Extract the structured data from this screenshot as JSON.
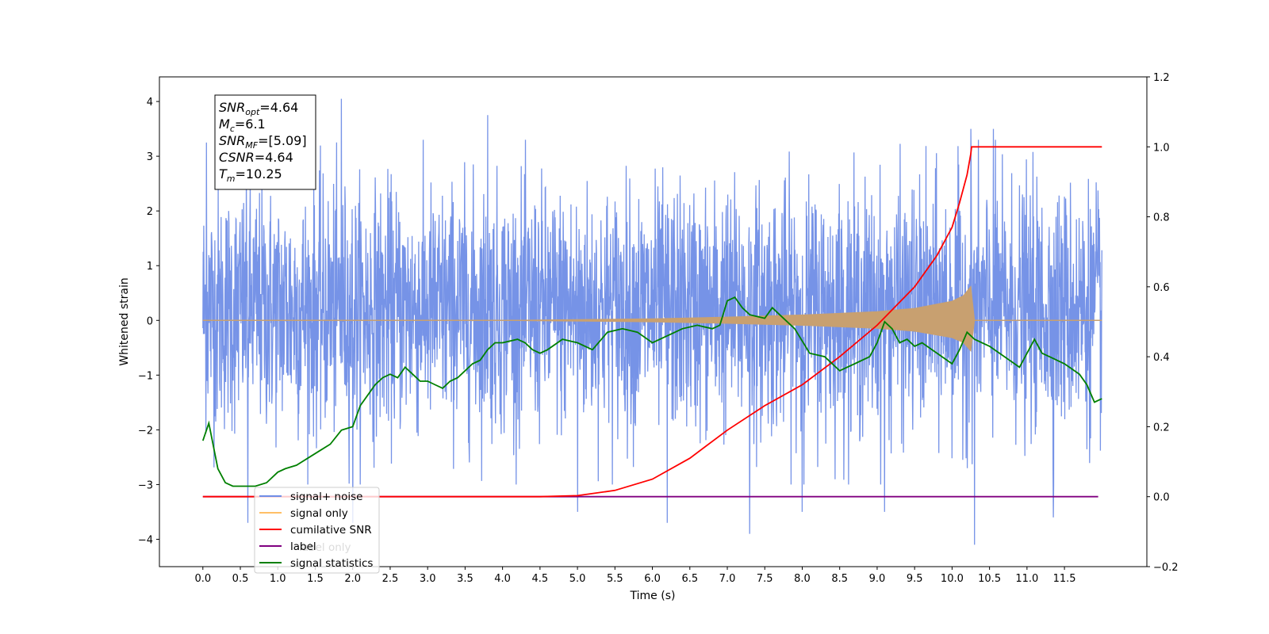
{
  "chart_data": {
    "type": "line",
    "title": "",
    "xlabel": "Time (s)",
    "ylabel": "Whitened strain",
    "y2label": "",
    "xlim": [
      -0.58,
      12.6
    ],
    "ylim": [
      -4.5,
      4.45
    ],
    "y2lim": [
      -0.2,
      1.2
    ],
    "grid": false,
    "x_ticks": [
      "0.0",
      "0.5",
      "1.0",
      "1.5",
      "2.0",
      "2.5",
      "3.0",
      "3.5",
      "4.0",
      "4.5",
      "5.0",
      "5.5",
      "6.0",
      "6.5",
      "7.0",
      "7.5",
      "8.0",
      "8.5",
      "9.0",
      "9.5",
      "10.0",
      "10.5",
      "11.0",
      "11.5"
    ],
    "y_ticks": [
      "4",
      "3",
      "2",
      "1",
      "0",
      "−1",
      "−2",
      "−3",
      "−4"
    ],
    "y2_ticks": [
      "1.2",
      "1.0",
      "0.8",
      "0.6",
      "0.4",
      "0.2",
      "0.0",
      "−0.2"
    ],
    "annotation": {
      "lines": [
        {
          "var": "SNR",
          "sub": "opt",
          "value": "=4.64"
        },
        {
          "var": "M",
          "sub": "c",
          "value": "=6.1"
        },
        {
          "var": "SNR",
          "sub": "MF",
          "value": "=[5.09]"
        },
        {
          "var": "CSNR",
          "sub": "",
          "value": "=4.64"
        },
        {
          "var": "T",
          "sub": "m",
          "value": "=10.25"
        }
      ]
    },
    "legend": {
      "placement": "lower-left",
      "entries": [
        {
          "label": "signal+ noise",
          "color": "#6f8de6"
        },
        {
          "label": "signal only",
          "color": "#ffbf66"
        },
        {
          "label": "cumilative SNR",
          "color": "#ff0000"
        },
        {
          "label": "label",
          "color": "#800080"
        },
        {
          "label": "signal statistics",
          "color": "#008000"
        }
      ],
      "hidden_text": "label only"
    },
    "series": [
      {
        "name": "signal+ noise",
        "axis": "left",
        "color": "#6f8de6",
        "x_range": [
          0,
          12.0
        ],
        "envelope_typical": [
          -2.0,
          2.5
        ],
        "spikes_x": [
          0.05,
          0.6,
          1.85,
          2.0,
          3.8,
          5.0,
          6.2,
          7.3,
          8.0,
          9.1,
          10.25,
          10.3,
          10.55,
          11.35
        ],
        "spikes_y": [
          3.25,
          -3.7,
          4.05,
          -3.7,
          3.75,
          -3.5,
          -3.7,
          -3.9,
          -3.5,
          -3.5,
          3.5,
          -4.1,
          3.5,
          -3.6
        ]
      },
      {
        "name": "signal only",
        "axis": "left",
        "color": "#c8a070",
        "x_range": [
          0,
          12.0
        ],
        "chirp_envelope_x": [
          0,
          4.0,
          6.0,
          7.0,
          8.0,
          9.0,
          9.5,
          10.0,
          10.15,
          10.25,
          10.3,
          12.0
        ],
        "chirp_envelope_y": [
          0.0,
          0.0,
          0.03,
          0.06,
          0.1,
          0.16,
          0.22,
          0.35,
          0.45,
          0.62,
          0.0,
          0.0
        ]
      },
      {
        "name": "cumilative SNR",
        "axis": "right",
        "color": "#ff0000",
        "x": [
          0,
          4.5,
          5.0,
          5.5,
          6.0,
          6.5,
          7.0,
          7.5,
          8.0,
          8.5,
          9.0,
          9.5,
          9.8,
          10.0,
          10.1,
          10.2,
          10.25,
          10.26,
          12.0
        ],
        "values": [
          0.0,
          0.0,
          0.003,
          0.018,
          0.05,
          0.11,
          0.19,
          0.26,
          0.32,
          0.4,
          0.49,
          0.6,
          0.69,
          0.77,
          0.84,
          0.92,
          0.98,
          1.0,
          1.0
        ]
      },
      {
        "name": "label",
        "axis": "right",
        "color": "#800080",
        "x": [
          0,
          11.95
        ],
        "values": [
          0.0,
          0.0
        ]
      },
      {
        "name": "signal statistics",
        "axis": "right",
        "color": "#008000",
        "x": [
          0.0,
          0.08,
          0.2,
          0.3,
          0.4,
          0.5,
          0.7,
          0.85,
          1.0,
          1.1,
          1.25,
          1.4,
          1.55,
          1.7,
          1.85,
          2.0,
          2.1,
          2.2,
          2.3,
          2.4,
          2.5,
          2.6,
          2.7,
          2.8,
          2.9,
          3.0,
          3.1,
          3.2,
          3.3,
          3.4,
          3.5,
          3.6,
          3.7,
          3.8,
          3.9,
          4.0,
          4.2,
          4.3,
          4.4,
          4.5,
          4.6,
          4.8,
          5.0,
          5.2,
          5.4,
          5.6,
          5.8,
          6.0,
          6.2,
          6.4,
          6.6,
          6.8,
          6.9,
          7.0,
          7.1,
          7.2,
          7.3,
          7.5,
          7.6,
          7.7,
          7.9,
          8.1,
          8.3,
          8.5,
          8.7,
          8.9,
          9.0,
          9.1,
          9.2,
          9.3,
          9.4,
          9.5,
          9.6,
          9.8,
          10.0,
          10.1,
          10.2,
          10.3,
          10.5,
          10.7,
          10.9,
          11.0,
          11.1,
          11.2,
          11.3,
          11.5,
          11.7,
          11.8,
          11.9,
          12.0
        ],
        "values": [
          0.16,
          0.21,
          0.08,
          0.04,
          0.03,
          0.03,
          0.03,
          0.04,
          0.07,
          0.08,
          0.09,
          0.11,
          0.13,
          0.15,
          0.19,
          0.2,
          0.26,
          0.29,
          0.32,
          0.34,
          0.35,
          0.34,
          0.37,
          0.35,
          0.33,
          0.33,
          0.32,
          0.31,
          0.33,
          0.34,
          0.36,
          0.38,
          0.39,
          0.42,
          0.44,
          0.44,
          0.45,
          0.44,
          0.42,
          0.41,
          0.42,
          0.45,
          0.44,
          0.42,
          0.47,
          0.48,
          0.47,
          0.44,
          0.46,
          0.48,
          0.49,
          0.48,
          0.49,
          0.56,
          0.57,
          0.54,
          0.52,
          0.51,
          0.54,
          0.52,
          0.48,
          0.41,
          0.4,
          0.36,
          0.38,
          0.4,
          0.44,
          0.5,
          0.48,
          0.44,
          0.45,
          0.43,
          0.44,
          0.41,
          0.38,
          0.42,
          0.47,
          0.45,
          0.43,
          0.4,
          0.37,
          0.41,
          0.45,
          0.41,
          0.4,
          0.38,
          0.35,
          0.32,
          0.27,
          0.28
        ]
      }
    ]
  }
}
